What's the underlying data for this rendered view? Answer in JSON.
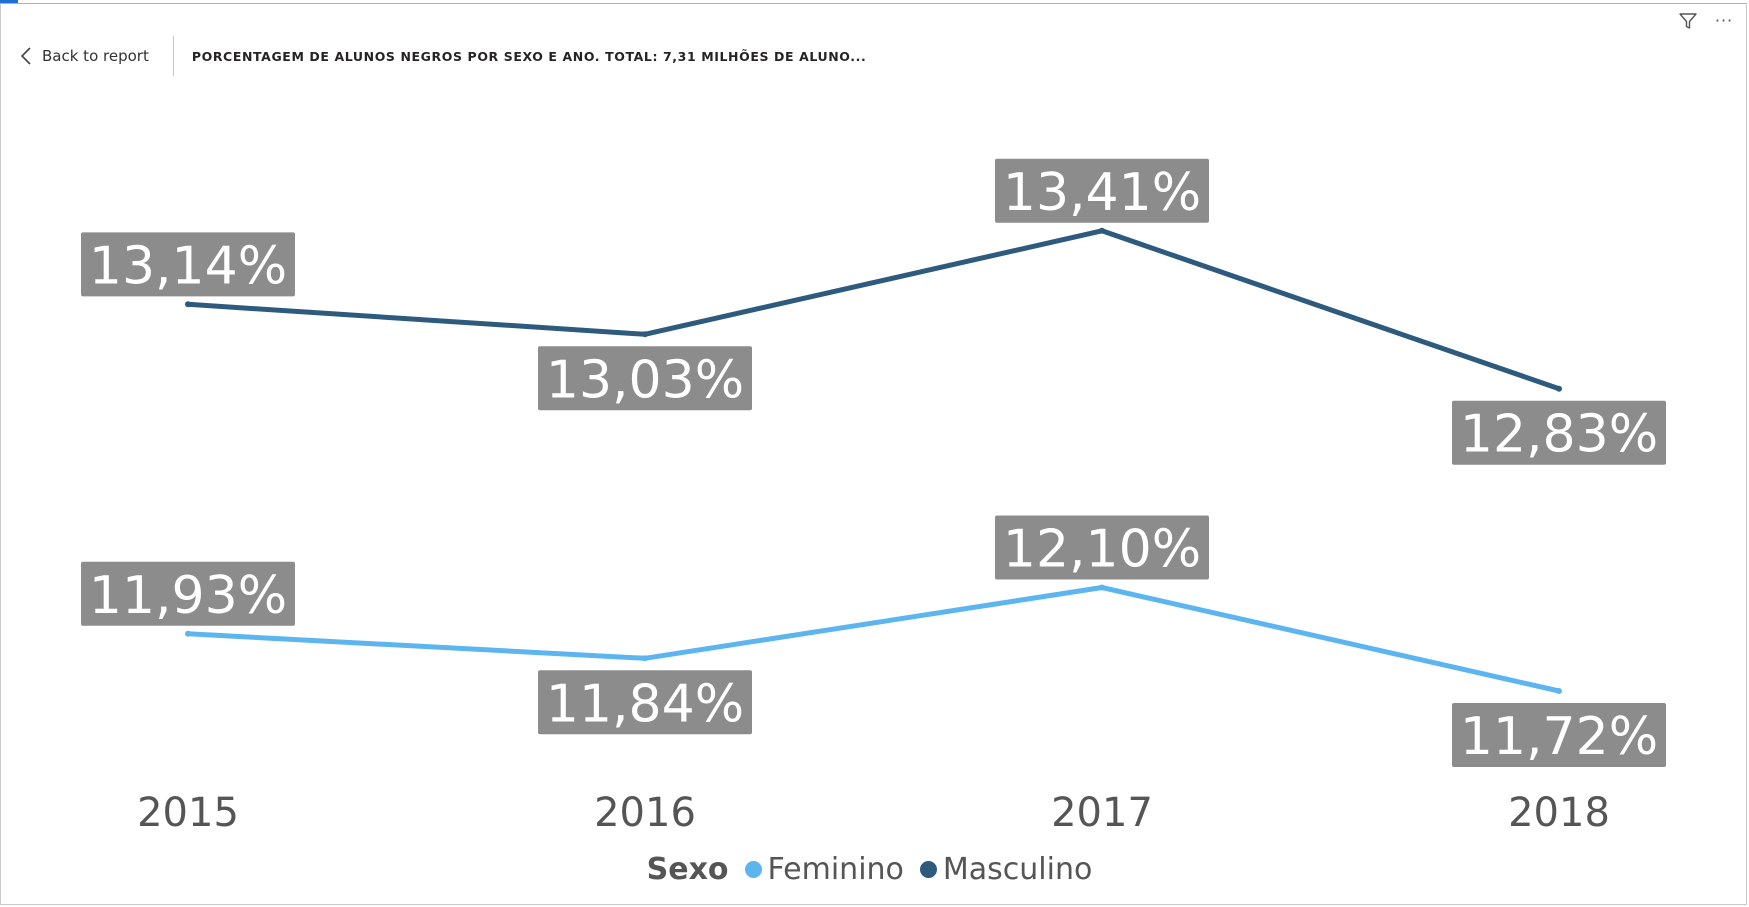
{
  "header": {
    "back_label": "Back to report",
    "title": "PORCENTAGEM DE ALUNOS NEGROS POR SEXO E ANO. TOTAL: 7,31 MILHÕES DE ALUNO..."
  },
  "toolbar": {
    "filter_icon": "filter-icon",
    "more_icon": "more-options-icon",
    "more_glyph": "···"
  },
  "colors": {
    "accent": "#1f6fd1",
    "feminino": "#5db5f0",
    "masculino": "#2d5a7d",
    "label_bg": "#8c8c8c"
  },
  "chart_data": {
    "type": "line",
    "title": "PORCENTAGEM DE ALUNOS NEGROS POR SEXO E ANO. TOTAL: 7,31 MILHÕES DE ALUNO...",
    "xlabel": "",
    "ylabel": "",
    "categories": [
      "2015",
      "2016",
      "2017",
      "2018"
    ],
    "series": [
      {
        "name": "Masculino",
        "values": [
          13.14,
          13.03,
          13.41,
          12.83
        ],
        "labels": [
          "13,14%",
          "13,03%",
          "13,41%",
          "12,83%"
        ],
        "color": "#2d5a7d"
      },
      {
        "name": "Feminino",
        "values": [
          11.93,
          11.84,
          12.1,
          11.72
        ],
        "labels": [
          "11,93%",
          "11,84%",
          "12,10%",
          "11,72%"
        ],
        "color": "#5db5f0"
      }
    ],
    "ylim": [
      11.54,
      13.67
    ],
    "grid": false,
    "legend": {
      "title": "Sexo",
      "position": "bottom-center",
      "items": [
        {
          "name": "Feminino",
          "color": "#5db5f0"
        },
        {
          "name": "Masculino",
          "color": "#2d5a7d"
        }
      ]
    }
  }
}
